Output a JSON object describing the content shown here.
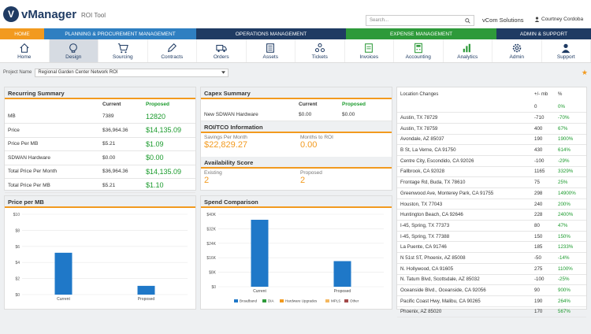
{
  "app": {
    "name": "vManager",
    "subtitle": "ROI Tool",
    "logo_letter": "V"
  },
  "search": {
    "placeholder": "Search..."
  },
  "company": "vCom Solutions",
  "user": "Courtney Cordoba",
  "nav": [
    {
      "label": "HOME",
      "color": "#f29a1f"
    },
    {
      "label": "PLANNING & PROCUREMENT MANAGEMENT",
      "color": "#2f7fc1"
    },
    {
      "label": "OPERATIONS MANAGEMENT",
      "color": "#1f3b63"
    },
    {
      "label": "EXPENSE MANAGEMENT",
      "color": "#2e9a3a"
    },
    {
      "label": "ADMIN & SUPPORT",
      "color": "#1f3b63"
    }
  ],
  "icons": [
    {
      "label": "Home",
      "icon": "home-icon"
    },
    {
      "label": "Design",
      "icon": "design-icon"
    },
    {
      "label": "Sourcing",
      "icon": "cart-icon"
    },
    {
      "label": "Contracts",
      "icon": "pen-icon"
    },
    {
      "label": "Orders",
      "icon": "truck-icon"
    },
    {
      "label": "Assets",
      "icon": "assets-icon"
    },
    {
      "label": "Tickets",
      "icon": "tickets-icon"
    },
    {
      "label": "Invoices",
      "icon": "invoices-icon"
    },
    {
      "label": "Accounting",
      "icon": "accounting-icon"
    },
    {
      "label": "Analytics",
      "icon": "analytics-icon"
    },
    {
      "label": "Admin",
      "icon": "gear-icon"
    },
    {
      "label": "Support",
      "icon": "support-icon"
    }
  ],
  "project": {
    "label": "Project Name",
    "value": "Regional Garden Center Network ROI"
  },
  "recurring": {
    "title": "Recurring Summary",
    "headers": [
      "",
      "Current",
      "Proposed"
    ],
    "rows": [
      {
        "label": "MB",
        "current": "7389",
        "proposed": "12820"
      },
      {
        "label": "Price",
        "current": "$36,964.36",
        "proposed": "$14,135.09"
      },
      {
        "label": "Price Per MB",
        "current": "$5.21",
        "proposed": "$1.09"
      },
      {
        "label": "SDWAN Hardware",
        "current": "$0.00",
        "proposed": "$0.00"
      },
      {
        "label": "Total Price Per Month",
        "current": "$36,964.36",
        "proposed": "$14,135.09"
      },
      {
        "label": "Total Price Per MB",
        "current": "$5.21",
        "proposed": "$1.10"
      }
    ]
  },
  "capex": {
    "title": "Capex Summary",
    "headers": [
      "",
      "Current",
      "Proposed"
    ],
    "rows": [
      {
        "label": "New SDWAN Hardware",
        "current": "$0.00",
        "proposed": "$0.00"
      }
    ]
  },
  "roi": {
    "title": "ROI/TCO Information",
    "savings_label": "Savings Per Month",
    "savings_value": "$22,829.27",
    "months_label": "Months to ROI",
    "months_value": "0.00"
  },
  "availability": {
    "title": "Availability Score",
    "existing_label": "Existing",
    "existing_value": "2",
    "proposed_label": "Proposed",
    "proposed_value": "2"
  },
  "chart_data": [
    {
      "type": "bar",
      "title": "Price per MB",
      "categories": [
        "Current",
        "Proposed"
      ],
      "values": [
        5.21,
        1.09
      ],
      "ylim": [
        0,
        10
      ],
      "yticks": [
        "$0",
        "$2",
        "$4",
        "$6",
        "$8",
        "$10"
      ],
      "ytick_values": [
        0,
        2,
        4,
        6,
        8,
        10
      ],
      "color": "#1f78c8"
    },
    {
      "type": "bar",
      "title": "Spend Comparison",
      "categories": [
        "Current",
        "Proposed"
      ],
      "values": [
        36964.36,
        14135.09
      ],
      "ylim": [
        0,
        40000
      ],
      "yticks": [
        "$0",
        "$8K",
        "$16K",
        "$24K",
        "$32K",
        "$40K"
      ],
      "ytick_values": [
        0,
        8000,
        16000,
        24000,
        32000,
        40000
      ],
      "color": "#1f78c8",
      "legend": [
        {
          "label": "Broadband",
          "color": "#1f78c8"
        },
        {
          "label": "DIA",
          "color": "#2e9a3a"
        },
        {
          "label": "Hardware Upgrades",
          "color": "#f29a1f"
        },
        {
          "label": "MPLS",
          "color": "#f4b860"
        },
        {
          "label": "Other",
          "color": "#a34a4a"
        }
      ]
    }
  ],
  "locations": {
    "title": "Location Changes",
    "col_change": "+/- mb",
    "col_pct": "%",
    "rows": [
      {
        "name": "",
        "change": "0",
        "pct": "0%"
      },
      {
        "name": "Austin, TX 78729",
        "change": "-710",
        "pct": "-70%"
      },
      {
        "name": "Austin, TX 78759",
        "change": "400",
        "pct": "67%"
      },
      {
        "name": "Avondale, AZ 85037",
        "change": "190",
        "pct": "1900%"
      },
      {
        "name": "B St, La Verne, CA 91750",
        "change": "430",
        "pct": "614%"
      },
      {
        "name": "Centre City, Escondido, CA 92026",
        "change": "-100",
        "pct": "-29%"
      },
      {
        "name": "Fallbrook, CA 92028",
        "change": "1165",
        "pct": "3329%"
      },
      {
        "name": "Frontage Rd, Buda, TX 78610",
        "change": "75",
        "pct": "25%"
      },
      {
        "name": "Greenwood Ave, Monterey Park, CA 91755",
        "change": "298",
        "pct": "14900%"
      },
      {
        "name": "Houston, TX 77043",
        "change": "240",
        "pct": "200%"
      },
      {
        "name": "Huntington Beach, CA 92646",
        "change": "228",
        "pct": "2400%"
      },
      {
        "name": "I-45, Spring, TX 77373",
        "change": "80",
        "pct": "47%"
      },
      {
        "name": "I-45, Spring, TX 77388",
        "change": "150",
        "pct": "150%"
      },
      {
        "name": "La Puente, CA 91746",
        "change": "185",
        "pct": "1233%"
      },
      {
        "name": "N 51st ST, Phoenix, AZ 85008",
        "change": "-50",
        "pct": "-14%"
      },
      {
        "name": "N. Hollywood, CA 91605",
        "change": "275",
        "pct": "1100%"
      },
      {
        "name": "N. Tatum Blvd, Scottsdale, AZ 85032",
        "change": "-100",
        "pct": "-25%"
      },
      {
        "name": "Oceanside Blvd., Oceanside, CA 92056",
        "change": "90",
        "pct": "900%"
      },
      {
        "name": "Pacific Coast Hwy, Malibu, CA 90265",
        "change": "190",
        "pct": "264%"
      },
      {
        "name": "Phoenix, AZ 85020",
        "change": "170",
        "pct": "567%"
      }
    ]
  }
}
